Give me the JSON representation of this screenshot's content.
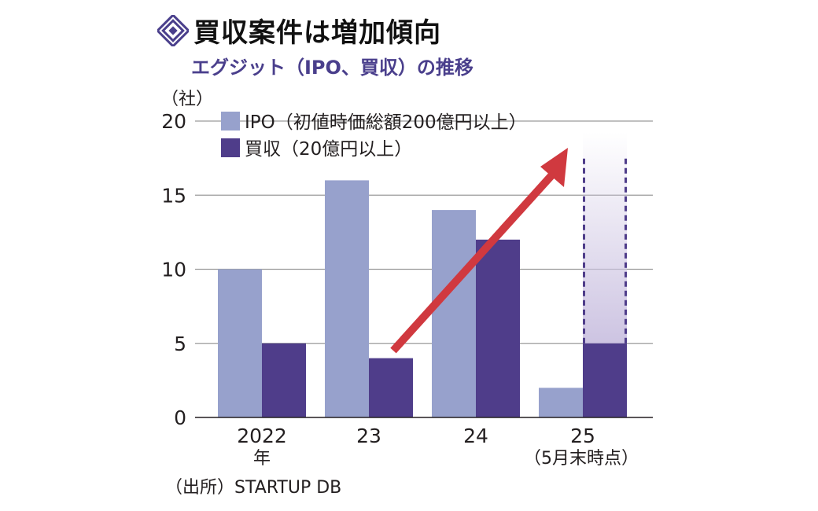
{
  "title": "買収案件は増加傾向",
  "subtitle": "エグジット（IPO、買収）の推移",
  "source": "（出所）STARTUP DB",
  "colors": {
    "ipo": "#97a1cc",
    "acquisition": "#4f3d8a",
    "grid": "#9a9a9a",
    "arrow": "#d0393f",
    "projection": "#cdc4e2",
    "title_icon": "#4a3f8c"
  },
  "chart_data": {
    "type": "bar",
    "unit_label": "（社）",
    "categories": [
      "2022",
      "23",
      "24",
      "25"
    ],
    "category_sublabels": [
      "年",
      "",
      "",
      "（5月末時点）"
    ],
    "series": [
      {
        "name": "IPO（初値時価総額200億円以上）",
        "values": [
          10,
          16,
          14,
          2
        ]
      },
      {
        "name": "買収（20億円以上）",
        "values": [
          5,
          4,
          12,
          5
        ]
      }
    ],
    "ylim": [
      0,
      20
    ],
    "yticks": [
      0,
      5,
      10,
      15,
      20
    ],
    "grid": true,
    "legend_position": "top-left",
    "annotations": [
      {
        "type": "arrow",
        "description": "trend arrow rising from 2023 acquisitions toward 2025"
      },
      {
        "type": "projection",
        "category": "25",
        "series": "買収（20億円以上）",
        "description": "dashed outline extending above 5 toward 20"
      }
    ]
  }
}
